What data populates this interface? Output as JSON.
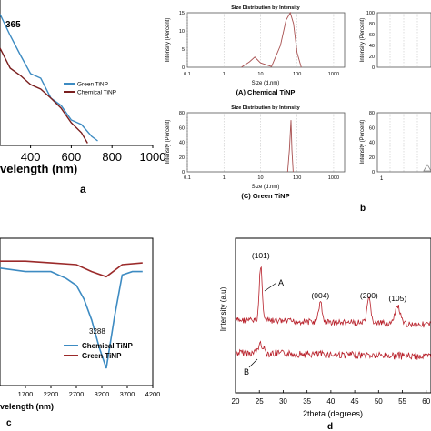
{
  "chart_data": [
    {
      "panel": "a",
      "type": "line",
      "peak_label": "365",
      "xlabel": "velength (nm)",
      "x_ticks": [
        "400",
        "600",
        "800",
        "1000"
      ],
      "xlim": [
        250,
        1000
      ],
      "series": [
        {
          "name": "Green TiNP",
          "color": "#3d8bc2",
          "x": [
            250,
            300,
            350,
            400,
            450,
            500,
            550,
            600,
            650,
            700,
            730
          ],
          "y": [
            0.95,
            0.82,
            0.65,
            0.54,
            0.48,
            0.36,
            0.28,
            0.2,
            0.14,
            0.08,
            0.02
          ]
        },
        {
          "name": "Chemical TiNP",
          "color": "#7a1f1f",
          "x": [
            250,
            300,
            350,
            400,
            450,
            500,
            550,
            600,
            650,
            680
          ],
          "y": [
            0.7,
            0.58,
            0.5,
            0.46,
            0.4,
            0.36,
            0.26,
            0.18,
            0.08,
            0.03
          ]
        }
      ]
    },
    {
      "panel": "b",
      "type": "line",
      "title_top": "Size Distribution by Intensity",
      "title_bottom": "Size Distribution by Intensity",
      "ylabel": "Intensity (Percent)",
      "xlabel": "Size (d.nm)",
      "x_ticks": [
        "0.1",
        "1",
        "10",
        "100",
        "1000"
      ],
      "top_y_ticks": [
        "0",
        "5",
        "10",
        "15"
      ],
      "bottom_y_ticks": [
        "0",
        "20",
        "40",
        "60",
        "80"
      ],
      "right_top_y_ticks": [
        "0",
        "20",
        "40",
        "60",
        "80",
        "100"
      ],
      "right_bottom_y_ticks": [
        "0",
        "20",
        "40",
        "60",
        "80"
      ],
      "right_bottom_x_tick": "1",
      "caption_top": "(A) Chemical TiNP",
      "caption_bottom": "(C) Green TiNP",
      "panel_label": "b",
      "chemical_size_nm": [
        3,
        5,
        7,
        10,
        20,
        35,
        50,
        65,
        80,
        100,
        130
      ],
      "chemical_intensity": [
        0,
        1.5,
        2.8,
        1.2,
        0.2,
        6,
        13,
        15,
        12,
        4,
        0
      ],
      "green_size_nm": [
        55,
        62,
        68,
        72,
        78
      ],
      "green_intensity": [
        0,
        30,
        70,
        30,
        0
      ]
    },
    {
      "panel": "c",
      "type": "line",
      "peak_label": "3288",
      "xlabel": "velength (nm)",
      "x_ticks": [
        "1700",
        "2200",
        "2700",
        "3200",
        "3700",
        "4200"
      ],
      "xlim": [
        1200,
        4200
      ],
      "series": [
        {
          "name": "Chemical TiNP",
          "color": "#3d8bc2",
          "x": [
            1200,
            1700,
            2200,
            2500,
            2700,
            2850,
            3000,
            3150,
            3288,
            3450,
            3600,
            3800,
            4000
          ],
          "y": [
            0.68,
            0.66,
            0.66,
            0.62,
            0.58,
            0.5,
            0.38,
            0.22,
            0.1,
            0.4,
            0.64,
            0.66,
            0.66
          ]
        },
        {
          "name": "Green TiNP",
          "color": "#9b2a2a",
          "x": [
            1200,
            1700,
            2200,
            2700,
            3000,
            3288,
            3600,
            4000
          ],
          "y": [
            0.72,
            0.72,
            0.71,
            0.7,
            0.66,
            0.63,
            0.7,
            0.71
          ]
        }
      ],
      "panel_label": "c"
    },
    {
      "panel": "d",
      "type": "line",
      "xlabel": "2theta (degrees)",
      "ylabel": "Intensity (a.u)",
      "x_ticks": [
        "20",
        "25",
        "30",
        "35",
        "40",
        "45",
        "50",
        "55",
        "60"
      ],
      "xlim": [
        20,
        61
      ],
      "peaks": [
        {
          "label": "(101)",
          "x": 25.3
        },
        {
          "label": "(004)",
          "x": 37.8
        },
        {
          "label": "(200)",
          "x": 48.0
        },
        {
          "label": "(105)",
          "x": 54.0
        }
      ],
      "curve_A": "A",
      "curve_B": "B",
      "panel_label": "d"
    }
  ]
}
